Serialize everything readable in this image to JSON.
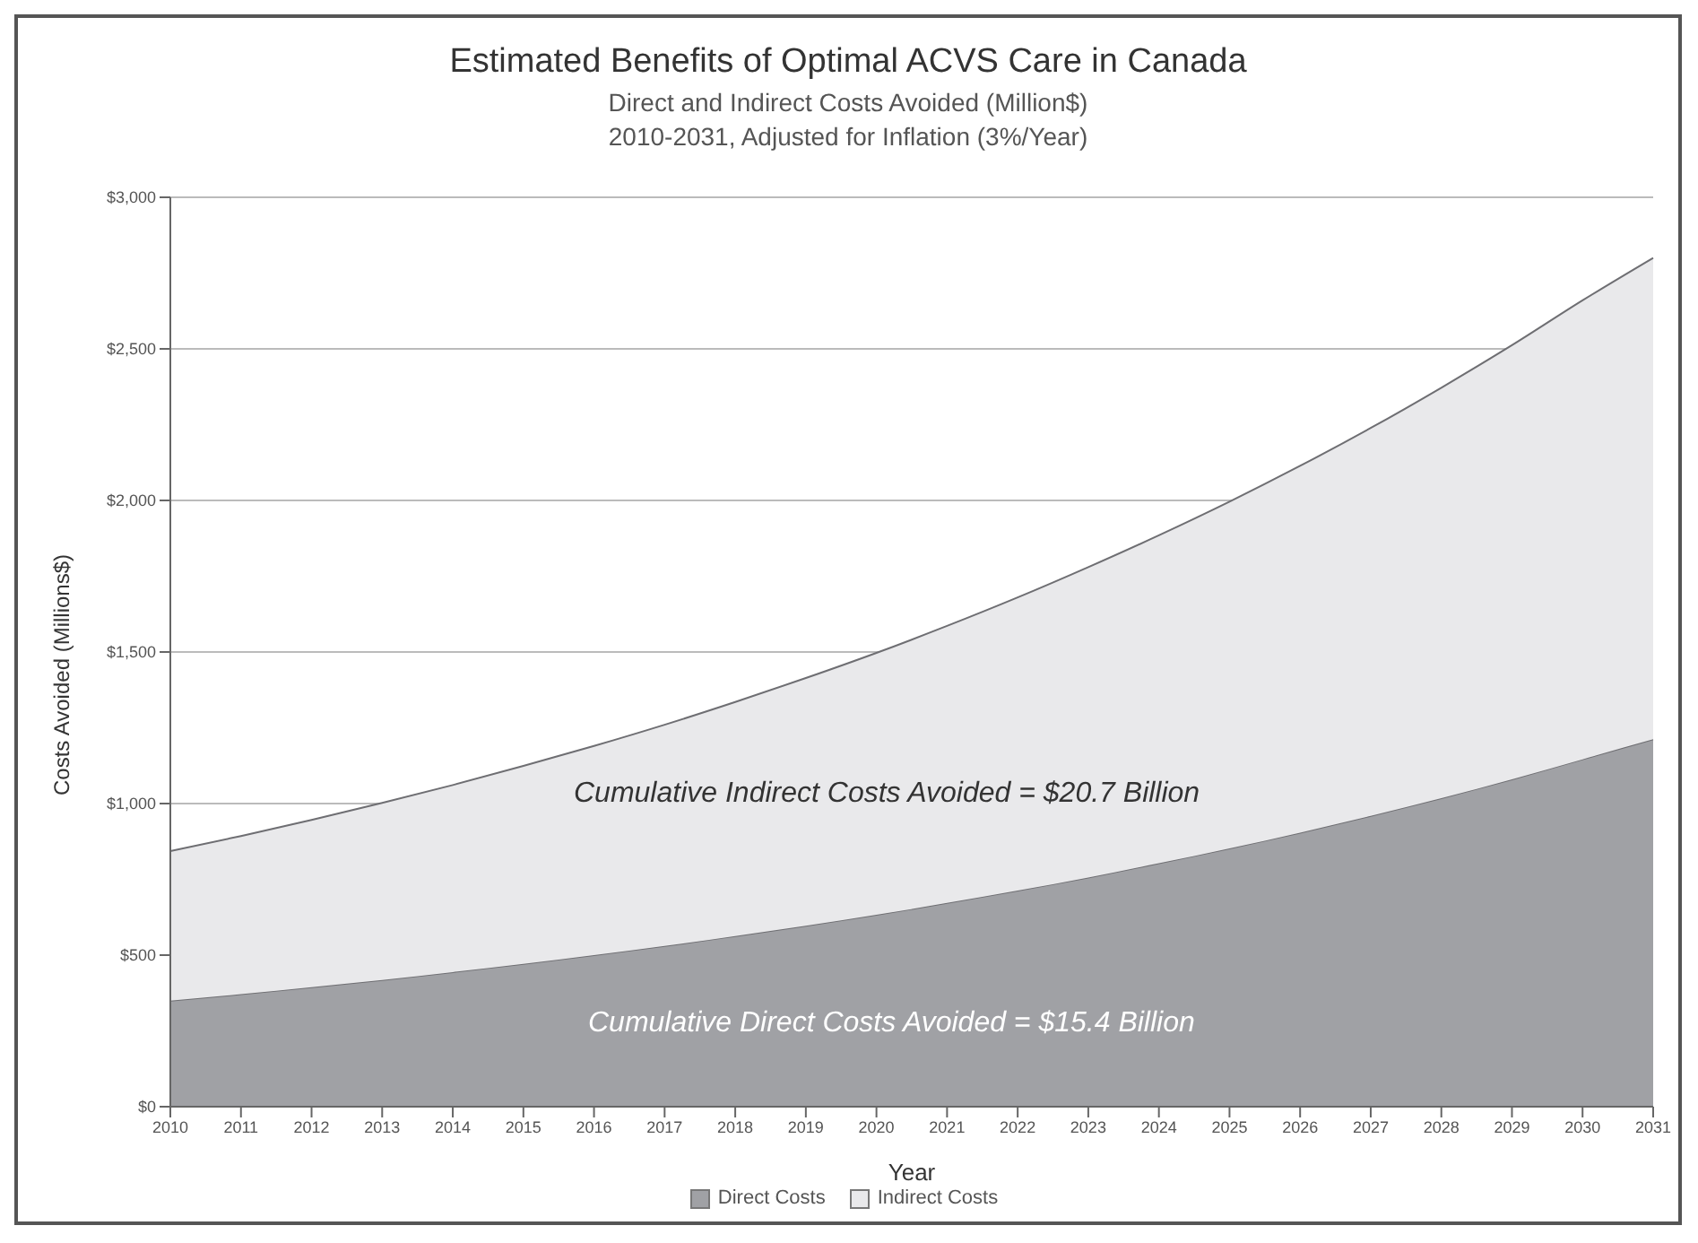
{
  "chart_data": {
    "type": "area",
    "title": "Estimated Benefits of Optimal ACVS Care in Canada",
    "subtitle": "Direct and Indirect Costs Avoided (Million$)\n2010-2031, Adjusted for Inflation (3%/Year)",
    "xlabel": "Year",
    "ylabel": "Costs Avoided (Millions$)",
    "categories": [
      "2010",
      "2011",
      "2012",
      "2013",
      "2014",
      "2015",
      "2016",
      "2017",
      "2018",
      "2019",
      "2020",
      "2021",
      "2022",
      "2023",
      "2024",
      "2025",
      "2026",
      "2027",
      "2028",
      "2029",
      "2030",
      "2031"
    ],
    "stacked": true,
    "series": [
      {
        "name": "Direct Costs",
        "color": "#a0a1a5",
        "values": [
          350,
          371,
          394,
          418,
          444,
          471,
          500,
          530,
          563,
          597,
          633,
          672,
          713,
          756,
          803,
          852,
          904,
          959,
          1018,
          1080,
          1146,
          1212
        ]
      },
      {
        "name": "Indirect Costs",
        "color": "#e9e9eb",
        "values": [
          493,
          522,
          552,
          584,
          617,
          653,
          690,
          730,
          772,
          817,
          864,
          914,
          967,
          1024,
          1082,
          1144,
          1210,
          1280,
          1354,
          1432,
          1514,
          1588
        ]
      }
    ],
    "ylim": [
      0,
      3000
    ],
    "yticks": [
      {
        "value": 0,
        "label": "$0"
      },
      {
        "value": 500,
        "label": "$500"
      },
      {
        "value": 1000,
        "label": "$1,000"
      },
      {
        "value": 1500,
        "label": "$1,500"
      },
      {
        "value": 2000,
        "label": "$2,000"
      },
      {
        "value": 2500,
        "label": "$2,500"
      },
      {
        "value": 3000,
        "label": "$3,000"
      }
    ],
    "grid": "y",
    "legend": "bottom",
    "annotations": [
      "Cumulative Indirect Costs Avoided = $20.7 Billion",
      "Cumulative Direct Costs Avoided = $15.4 Billion"
    ]
  }
}
